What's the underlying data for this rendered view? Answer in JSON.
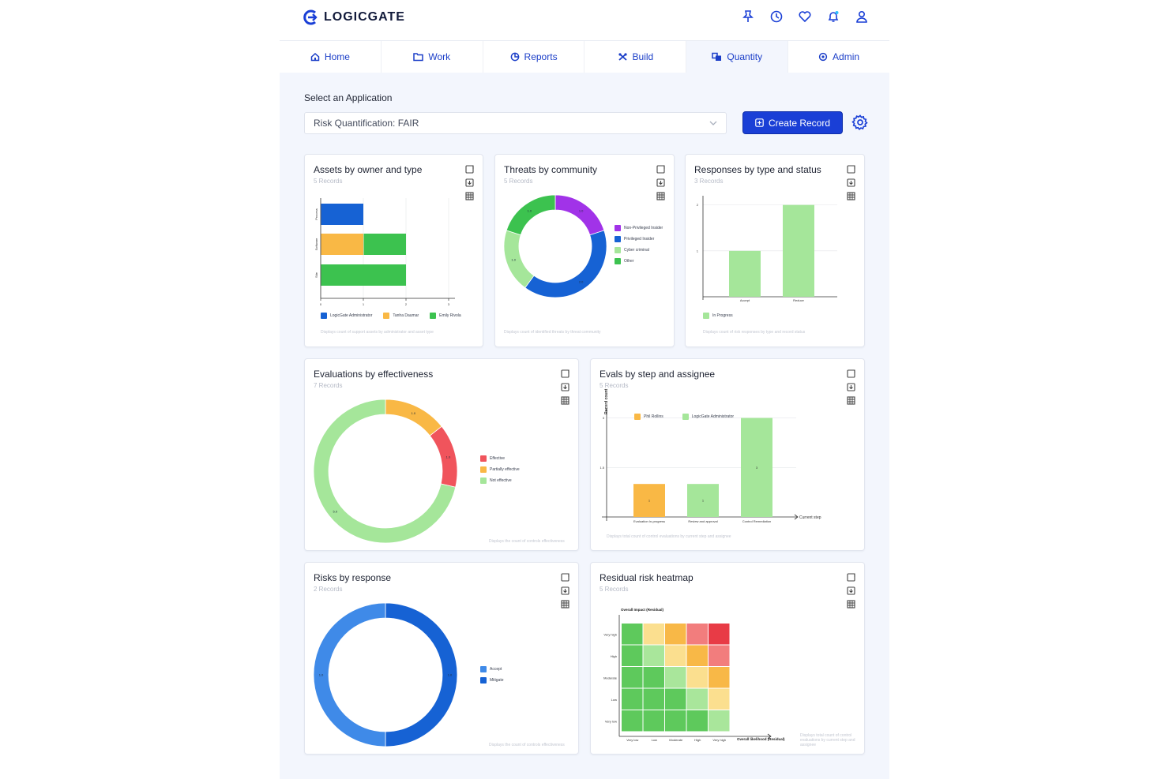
{
  "brand": {
    "name": "LOGICGATE"
  },
  "topbar_icons": [
    "pin-icon",
    "history-icon",
    "heart-icon",
    "bell-icon",
    "user-icon"
  ],
  "nav": {
    "tabs": [
      {
        "label": "Home",
        "icon": "home-icon"
      },
      {
        "label": "Work",
        "icon": "folder-icon"
      },
      {
        "label": "Reports",
        "icon": "pie-chart-icon"
      },
      {
        "label": "Build",
        "icon": "build-icon"
      },
      {
        "label": "Quantity",
        "icon": "quantity-icon",
        "active": true
      },
      {
        "label": "Admin",
        "icon": "admin-gear-icon"
      }
    ]
  },
  "app_select": {
    "label": "Select an Application",
    "value": "Risk Quantification: FAIR"
  },
  "create_button": {
    "label": "Create Record"
  },
  "colors": {
    "accent": "#1a3fd6",
    "blue": "#1662d4",
    "orange": "#f9b845",
    "green": "#3cc24f",
    "light_green": "#a5e69a",
    "purple": "#a133e8",
    "red": "#f0545c"
  },
  "cards": {
    "assets": {
      "title": "Assets by owner and type",
      "subtitle": "5 Records",
      "footnote": "Displays count of support assets by administrator and asset type",
      "chart_data": {
        "type": "bar",
        "orientation": "horizontal",
        "stacked": true,
        "categories": [
          "Process",
          "Software",
          "Site"
        ],
        "series": [
          {
            "name": "LogicGate Administrator",
            "values": [
              1,
              0,
              0
            ]
          },
          {
            "name": "Tanha Daumar",
            "values": [
              0,
              1,
              0
            ]
          },
          {
            "name": "Emily Rivola",
            "values": [
              0,
              1,
              2
            ]
          }
        ],
        "xticks": [
          "0",
          "1",
          "2",
          "3"
        ],
        "xlim": [
          0,
          3
        ]
      }
    },
    "threats": {
      "title": "Threats by community",
      "subtitle": "5 Records",
      "footnote": "Displays count of identified threats by threat community",
      "chart_data": {
        "type": "pie",
        "donut": true,
        "labels": [
          "Non-Privileged Insider",
          "Privileged Insider",
          "Cyber criminal",
          "Other"
        ],
        "values": [
          1,
          2,
          1,
          1
        ],
        "data_labels": [
          "1.0",
          "2.0",
          "1.0",
          "1.0"
        ]
      }
    },
    "responses": {
      "title": "Responses by type and status",
      "subtitle": "3 Records",
      "footnote": "Displays count of risk responses by type and record status",
      "chart_data": {
        "type": "bar",
        "categories": [
          "Accept",
          "Reduce"
        ],
        "series": [
          {
            "name": "In Progress",
            "values": [
              1,
              2
            ]
          }
        ],
        "yticks": [
          "1",
          "2"
        ],
        "ylim": [
          0,
          2.2
        ]
      }
    },
    "evaluations": {
      "title": "Evaluations by effectiveness",
      "subtitle": "7 Records",
      "footnote": "Displays the count of controls effectiveness",
      "chart_data": {
        "type": "pie",
        "donut": true,
        "labels": [
          "Effective",
          "Partially effective",
          "Not effective"
        ],
        "values": [
          1,
          1,
          5
        ],
        "data_labels": [
          "1.0",
          "1.0",
          "5.0"
        ]
      }
    },
    "evals_step": {
      "title": "Evals by step and assignee",
      "subtitle": "5 Records",
      "footnote": "Displays total count of control evaluations by current step and assignee",
      "chart_data": {
        "type": "bar",
        "categories": [
          "Evaluation In-progress",
          "Review and approval",
          "Control Remediation"
        ],
        "series": [
          {
            "name": "Phil Rollins",
            "values": [
              1,
              0,
              0
            ]
          },
          {
            "name": "LogicGate Administrator",
            "values": [
              0,
              1,
              3
            ]
          }
        ],
        "xlabel": "Current step",
        "ylabel": "Record count",
        "yticks": [
          "1.5",
          "3"
        ],
        "ylim": [
          0,
          3.3
        ],
        "data_labels": [
          "1",
          "1",
          "3"
        ]
      }
    },
    "risks_response": {
      "title": "Risks by response",
      "subtitle": "2 Records",
      "footnote": "Displays the count of controls effectiveness",
      "chart_data": {
        "type": "pie",
        "donut": true,
        "labels": [
          "Accept",
          "Mitigate"
        ],
        "values": [
          1,
          1
        ],
        "data_labels": [
          "1.0",
          "1.0"
        ]
      }
    },
    "heatmap": {
      "title": "Residual risk heatmap",
      "subtitle": "5 Records",
      "footnote": "Displays total count of control evaluations by current step and assignee",
      "chart_data": {
        "type": "heatmap",
        "ylabel": "Overall Impact (Residual)",
        "xlabel": "Overall likelihood (Residual)",
        "rows": [
          "Very high",
          "High",
          "Moderate",
          "Low",
          "Very low"
        ],
        "cols": [
          "Very low",
          "Low",
          "Moderate",
          "High",
          "Very high"
        ],
        "cells": [
          [
            "#5ec95c",
            "#fbdf8f",
            "#f8b847",
            "#f27d7d",
            "#e83b46"
          ],
          [
            "#5ec95c",
            "#a9e69b",
            "#fbdf8f",
            "#f8b847",
            "#f27d7d"
          ],
          [
            "#5ec95c",
            "#5ec95c",
            "#a9e69b",
            "#fbdf8f",
            "#f8b847"
          ],
          [
            "#5ec95c",
            "#5ec95c",
            "#5ec95c",
            "#a9e69b",
            "#fbdf8f"
          ],
          [
            "#5ec95c",
            "#5ec95c",
            "#5ec95c",
            "#5ec95c",
            "#a9e69b"
          ]
        ]
      }
    }
  }
}
